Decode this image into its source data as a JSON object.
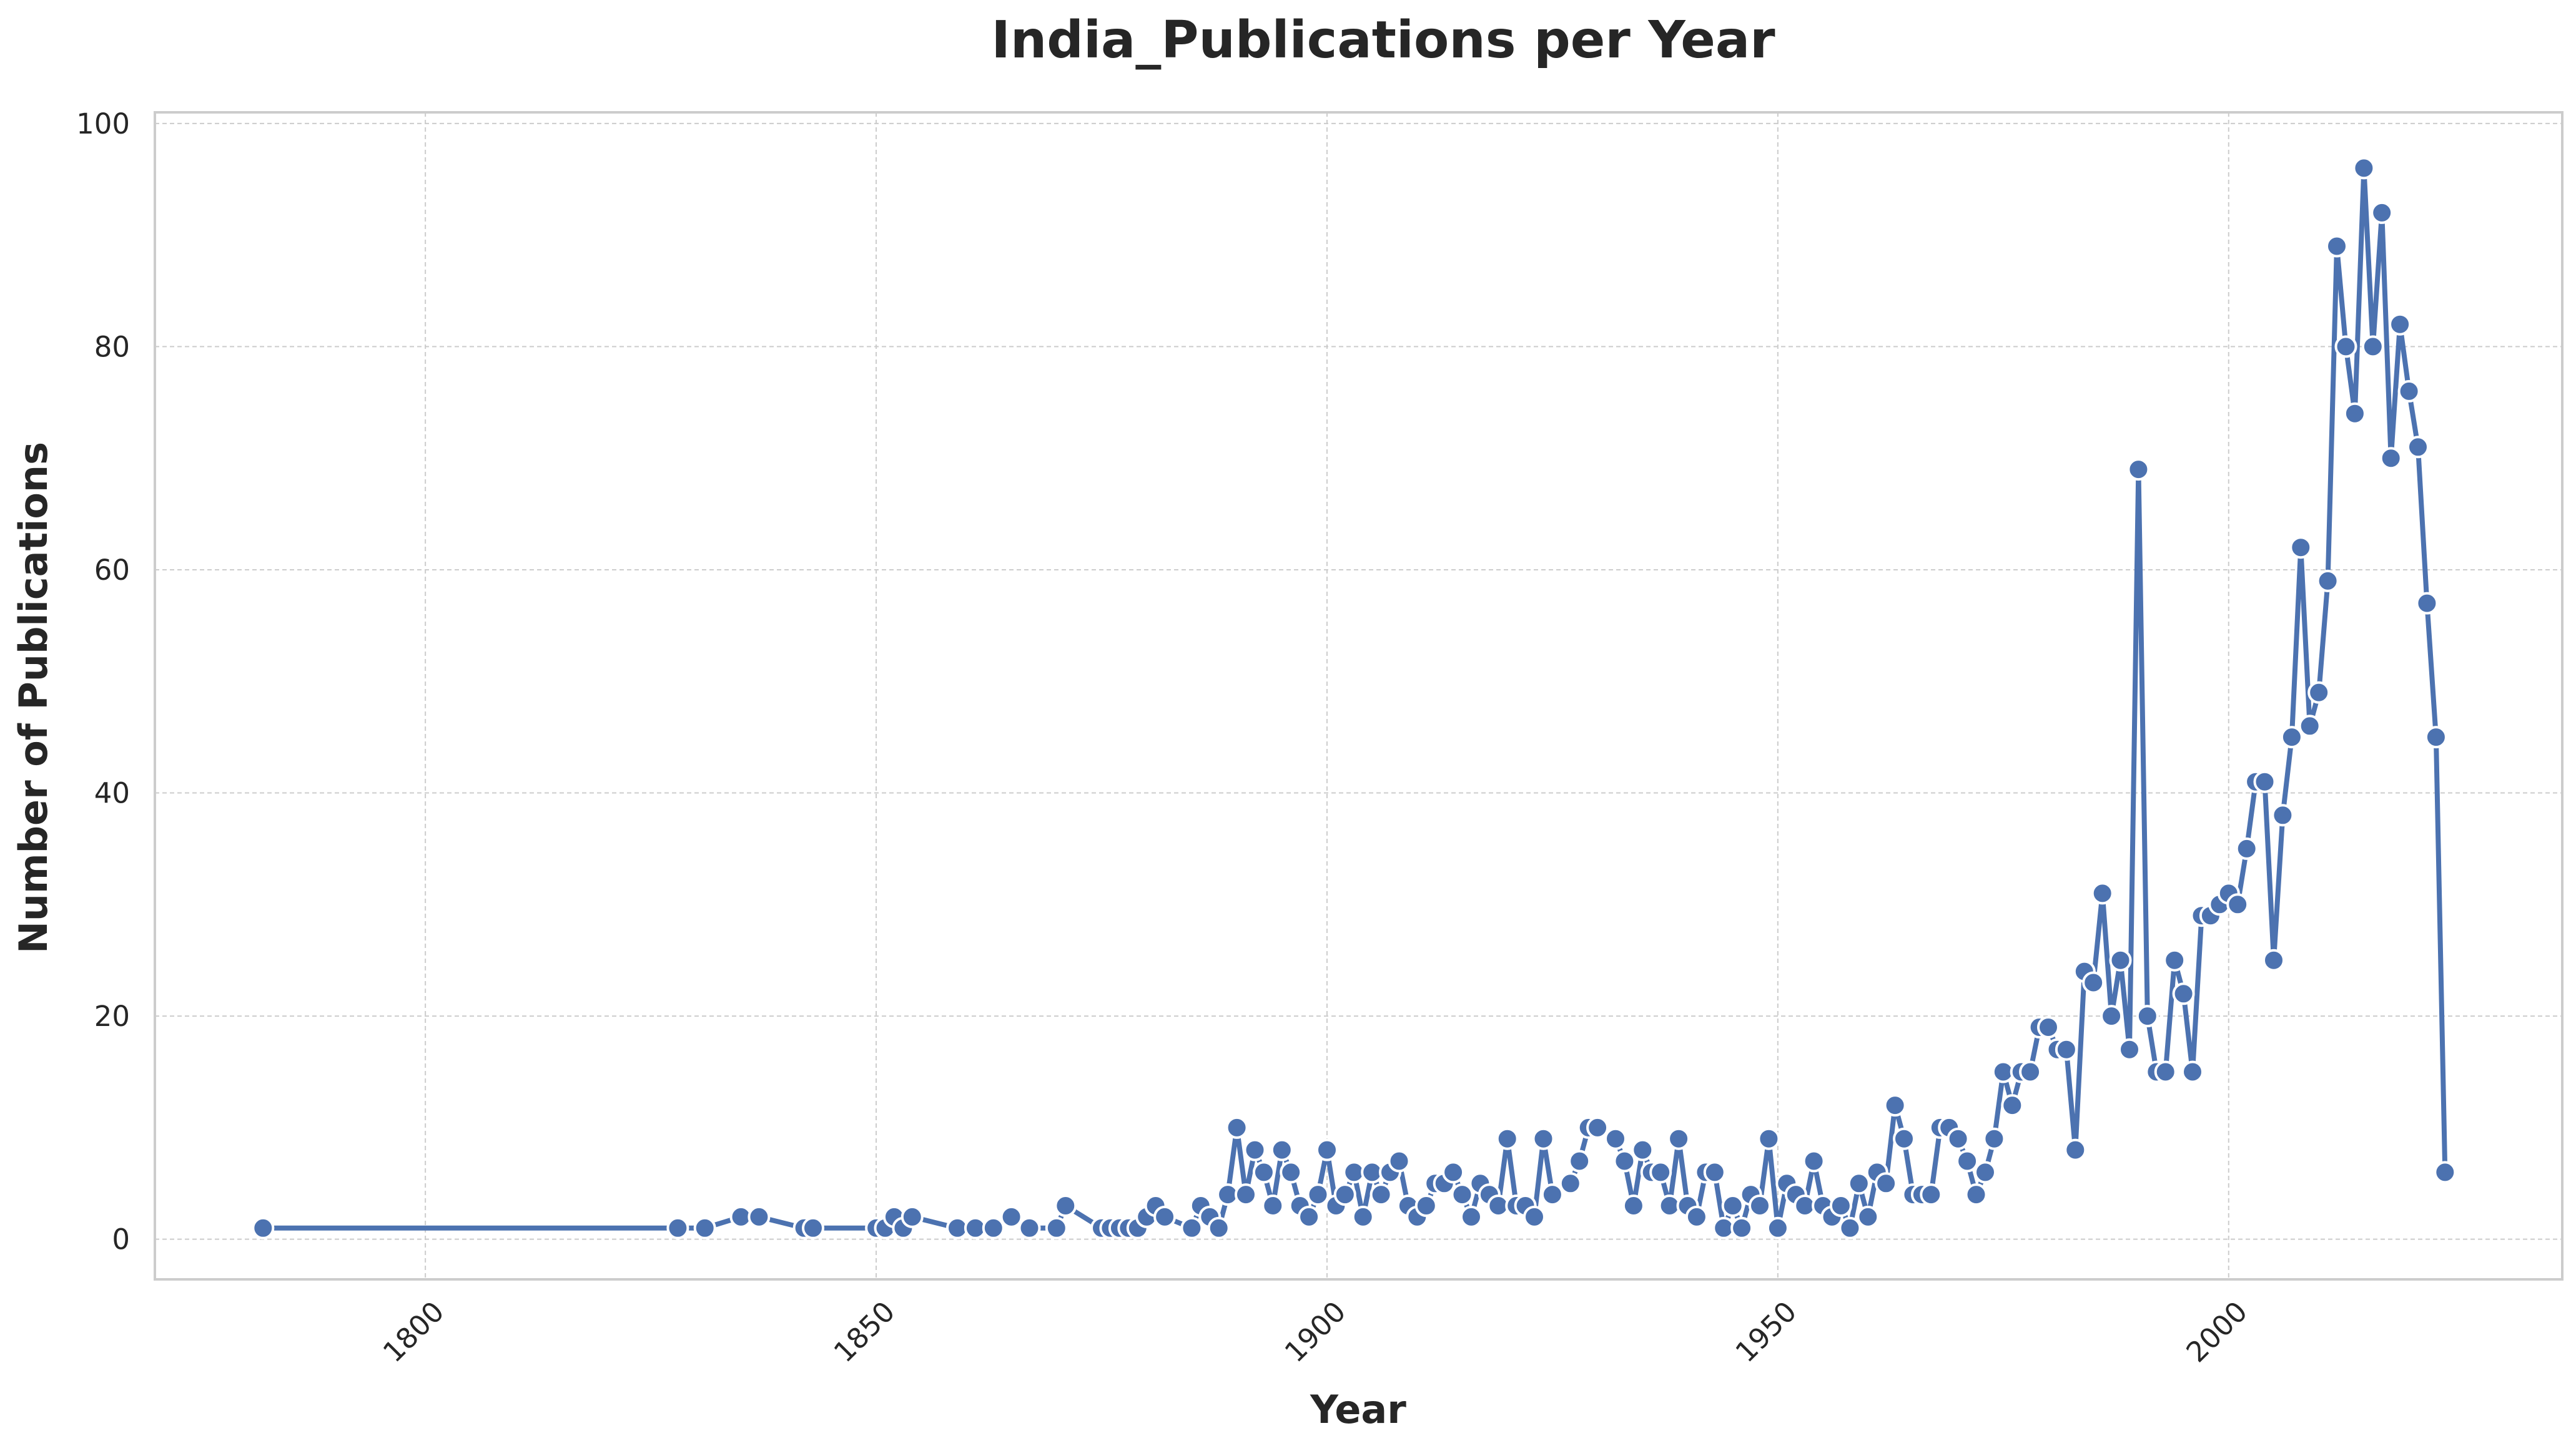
{
  "chart_data": {
    "type": "line",
    "title": "India_Publications per Year",
    "xlabel": "Year",
    "ylabel": "Number of Publications",
    "xlim": [
      1770,
      2037
    ],
    "ylim": [
      -3.6,
      101
    ],
    "x_ticks": [
      1800,
      1850,
      1900,
      1950,
      2000
    ],
    "y_ticks": [
      0,
      20,
      40,
      60,
      80,
      100
    ],
    "grid": true,
    "line_color": "#4c72b0",
    "marker_edge_color": "#ffffff",
    "series": [
      {
        "points": [
          [
            1782,
            1
          ],
          [
            1828,
            1
          ],
          [
            1831,
            1
          ],
          [
            1835,
            2
          ],
          [
            1837,
            2
          ],
          [
            1842,
            1
          ],
          [
            1843,
            1
          ],
          [
            1850,
            1
          ],
          [
            1851,
            1
          ],
          [
            1852,
            2
          ],
          [
            1853,
            1
          ],
          [
            1854,
            2
          ],
          [
            1859,
            1
          ],
          [
            1861,
            1
          ],
          [
            1863,
            1
          ],
          [
            1865,
            2
          ],
          [
            1867,
            1
          ],
          [
            1870,
            1
          ],
          [
            1871,
            3
          ],
          [
            1875,
            1
          ],
          [
            1876,
            1
          ],
          [
            1877,
            1
          ],
          [
            1878,
            1
          ],
          [
            1879,
            1
          ],
          [
            1880,
            2
          ],
          [
            1881,
            3
          ],
          [
            1882,
            2
          ],
          [
            1885,
            1
          ],
          [
            1886,
            3
          ],
          [
            1887,
            2
          ],
          [
            1888,
            1
          ],
          [
            1889,
            4
          ],
          [
            1890,
            10
          ],
          [
            1891,
            4
          ],
          [
            1892,
            8
          ],
          [
            1893,
            6
          ],
          [
            1894,
            3
          ],
          [
            1895,
            8
          ],
          [
            1896,
            6
          ],
          [
            1897,
            3
          ],
          [
            1898,
            2
          ],
          [
            1899,
            4
          ],
          [
            1900,
            8
          ],
          [
            1901,
            3
          ],
          [
            1902,
            4
          ],
          [
            1903,
            6
          ],
          [
            1904,
            2
          ],
          [
            1905,
            6
          ],
          [
            1906,
            4
          ],
          [
            1907,
            6
          ],
          [
            1908,
            7
          ],
          [
            1909,
            3
          ],
          [
            1910,
            2
          ],
          [
            1911,
            3
          ],
          [
            1912,
            5
          ],
          [
            1913,
            5
          ],
          [
            1914,
            6
          ],
          [
            1915,
            4
          ],
          [
            1916,
            2
          ],
          [
            1917,
            5
          ],
          [
            1918,
            4
          ],
          [
            1919,
            3
          ],
          [
            1920,
            9
          ],
          [
            1921,
            3
          ],
          [
            1922,
            3
          ],
          [
            1923,
            2
          ],
          [
            1924,
            9
          ],
          [
            1925,
            4
          ],
          [
            1927,
            5
          ],
          [
            1928,
            7
          ],
          [
            1929,
            10
          ],
          [
            1930,
            10
          ],
          [
            1932,
            9
          ],
          [
            1933,
            7
          ],
          [
            1934,
            3
          ],
          [
            1935,
            8
          ],
          [
            1936,
            6
          ],
          [
            1937,
            6
          ],
          [
            1938,
            3
          ],
          [
            1939,
            9
          ],
          [
            1940,
            3
          ],
          [
            1941,
            2
          ],
          [
            1942,
            6
          ],
          [
            1943,
            6
          ],
          [
            1944,
            1
          ],
          [
            1945,
            3
          ],
          [
            1946,
            1
          ],
          [
            1947,
            4
          ],
          [
            1948,
            3
          ],
          [
            1949,
            9
          ],
          [
            1950,
            1
          ],
          [
            1951,
            5
          ],
          [
            1952,
            4
          ],
          [
            1953,
            3
          ],
          [
            1954,
            7
          ],
          [
            1955,
            3
          ],
          [
            1956,
            2
          ],
          [
            1957,
            3
          ],
          [
            1958,
            1
          ],
          [
            1959,
            5
          ],
          [
            1960,
            2
          ],
          [
            1961,
            6
          ],
          [
            1962,
            5
          ],
          [
            1963,
            12
          ],
          [
            1964,
            9
          ],
          [
            1965,
            4
          ],
          [
            1966,
            4
          ],
          [
            1967,
            4
          ],
          [
            1968,
            10
          ],
          [
            1969,
            10
          ],
          [
            1970,
            9
          ],
          [
            1971,
            7
          ],
          [
            1972,
            4
          ],
          [
            1973,
            6
          ],
          [
            1974,
            9
          ],
          [
            1975,
            15
          ],
          [
            1976,
            12
          ],
          [
            1977,
            15
          ],
          [
            1978,
            15
          ],
          [
            1979,
            19
          ],
          [
            1980,
            19
          ],
          [
            1981,
            17
          ],
          [
            1982,
            17
          ],
          [
            1983,
            8
          ],
          [
            1984,
            24
          ],
          [
            1985,
            23
          ],
          [
            1986,
            31
          ],
          [
            1987,
            20
          ],
          [
            1988,
            25
          ],
          [
            1989,
            17
          ],
          [
            1990,
            69
          ],
          [
            1991,
            20
          ],
          [
            1992,
            15
          ],
          [
            1993,
            15
          ],
          [
            1994,
            25
          ],
          [
            1995,
            22
          ],
          [
            1996,
            15
          ],
          [
            1997,
            29
          ],
          [
            1998,
            29
          ],
          [
            1999,
            30
          ],
          [
            2000,
            31
          ],
          [
            2001,
            30
          ],
          [
            2002,
            35
          ],
          [
            2003,
            41
          ],
          [
            2004,
            41
          ],
          [
            2005,
            25
          ],
          [
            2006,
            38
          ],
          [
            2007,
            45
          ],
          [
            2008,
            62
          ],
          [
            2009,
            46
          ],
          [
            2010,
            49
          ],
          [
            2011,
            59
          ],
          [
            2012,
            89
          ],
          [
            2013,
            80
          ],
          [
            2014,
            74
          ],
          [
            2015,
            96
          ],
          [
            2016,
            80
          ],
          [
            2017,
            92
          ],
          [
            2018,
            70
          ],
          [
            2019,
            82
          ],
          [
            2020,
            76
          ],
          [
            2021,
            71
          ],
          [
            2022,
            57
          ],
          [
            2023,
            45
          ],
          [
            2024,
            6
          ]
        ]
      }
    ]
  }
}
